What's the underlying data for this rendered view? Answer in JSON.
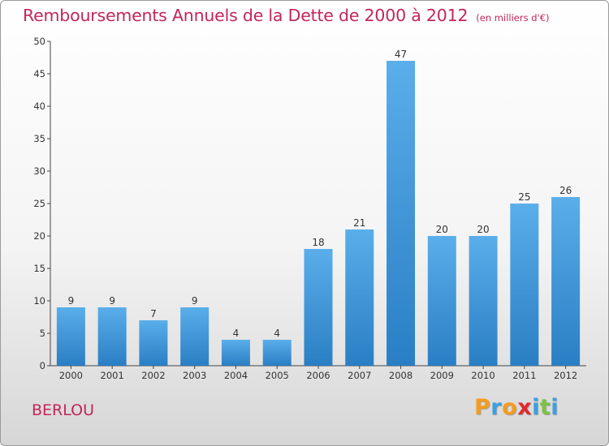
{
  "title": "Remboursements Annuels de la Dette de 2000 à 2012",
  "subtitle": "(en milliers d'€)",
  "city": "BERLOU",
  "logo": {
    "letters": [
      "P",
      "r",
      "o",
      "x",
      "i",
      "t",
      "i"
    ],
    "colors": [
      "#f39c1f",
      "#3aa0e0",
      "#f39c1f",
      "#e02a2a",
      "#3aa0e0",
      "#7cc242",
      "#3aa0e0"
    ]
  },
  "colors": {
    "accent": "#c4255b",
    "bar_top": "#5aaeea",
    "bar_bottom": "#2a7ec4"
  },
  "chart_data": {
    "type": "bar",
    "categories": [
      "2000",
      "2001",
      "2002",
      "2003",
      "2004",
      "2005",
      "2006",
      "2007",
      "2008",
      "2009",
      "2010",
      "2011",
      "2012"
    ],
    "values": [
      9,
      9,
      7,
      9,
      4,
      4,
      18,
      21,
      47,
      20,
      20,
      25,
      26
    ],
    "data_labels": [
      "9",
      "9",
      "7",
      "9",
      "4",
      "4",
      "18",
      "21",
      "47",
      "20",
      "20",
      "25",
      "26"
    ],
    "y_ticks": [
      "0",
      "5",
      "10",
      "15",
      "20",
      "25",
      "30",
      "35",
      "40",
      "45",
      "50"
    ],
    "ylim": [
      0,
      50
    ],
    "grid": false,
    "legend": "none"
  }
}
